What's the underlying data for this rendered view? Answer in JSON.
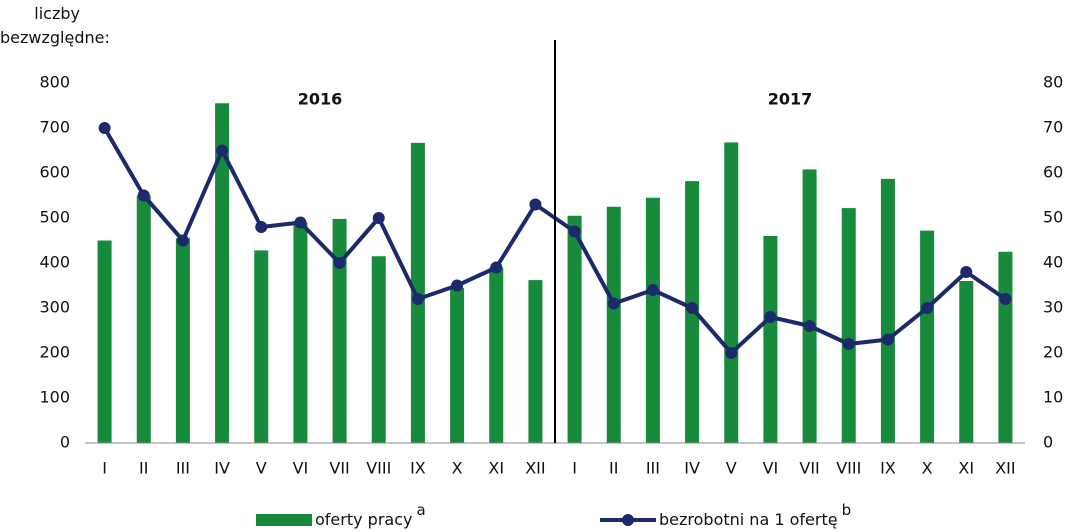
{
  "chart_data": {
    "type": "bar-line",
    "y_label": "liczby bezwzględne:",
    "categories": [
      "I",
      "II",
      "III",
      "IV",
      "V",
      "VI",
      "VII",
      "VIII",
      "IX",
      "X",
      "XI",
      "XII",
      "I",
      "II",
      "III",
      "IV",
      "V",
      "VI",
      "VII",
      "VIII",
      "IX",
      "X",
      "XI",
      "XII"
    ],
    "series": [
      {
        "name": "oferty pracy",
        "footnote": "a",
        "color": "#178a3c",
        "kind": "bar",
        "values": [
          450,
          550,
          455,
          755,
          428,
          490,
          498,
          415,
          667,
          345,
          390,
          362,
          505,
          525,
          545,
          582,
          668,
          460,
          608,
          522,
          587,
          472,
          360,
          425
        ]
      },
      {
        "name": "bezrobotni na 1 ofertę",
        "footnote": "b",
        "color": "#1c2a6b",
        "kind": "line",
        "axis": "y2",
        "values": [
          70,
          55,
          45,
          65,
          48,
          49,
          40,
          50,
          32,
          35,
          39,
          53,
          47,
          31,
          34,
          30,
          20,
          28,
          26,
          22,
          23,
          30,
          38,
          32
        ]
      }
    ],
    "annotations": [
      {
        "text": "2016"
      },
      {
        "text": "2017"
      }
    ],
    "ylim": [
      0,
      800
    ],
    "yticks": [
      0,
      100,
      200,
      300,
      400,
      500,
      600,
      700,
      800
    ],
    "y2lim": [
      0,
      80
    ],
    "y2ticks": [
      0,
      10,
      20,
      30,
      40,
      50,
      60,
      70,
      80
    ],
    "grid": false
  }
}
